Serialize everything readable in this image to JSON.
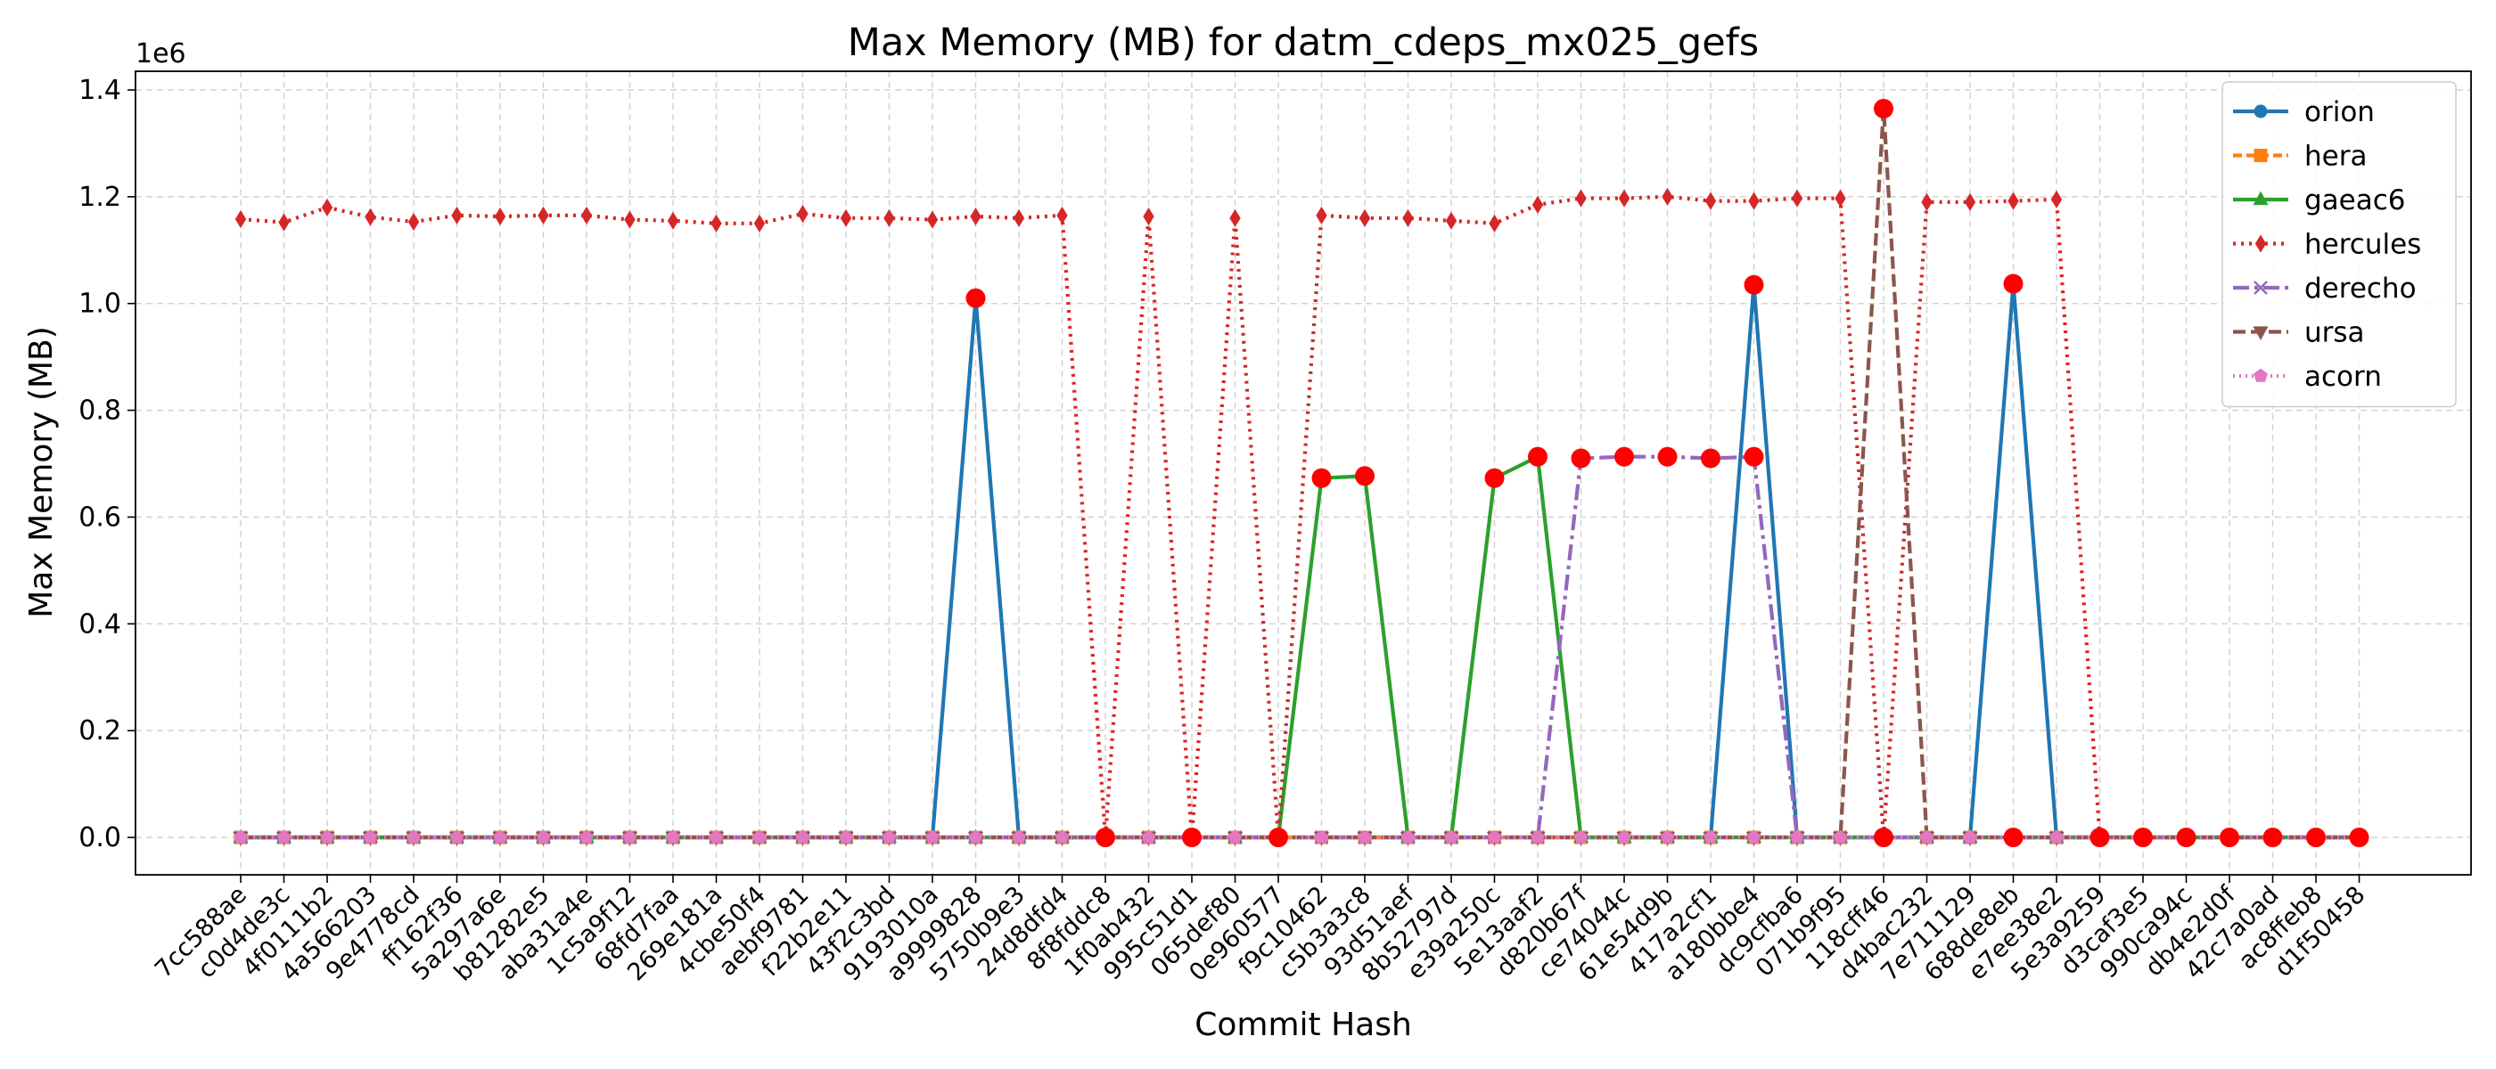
{
  "chart_data": {
    "type": "line",
    "title": "Max Memory (MB) for datm_cdeps_mx025_gefs",
    "xlabel": "Commit Hash",
    "ylabel": "Max Memory (MB)",
    "y_scale_label": "1e6",
    "y_multiplier": 1000000,
    "ylim": [
      -0.07,
      1.435
    ],
    "yticks": [
      0.0,
      0.2,
      0.4,
      0.6,
      0.8,
      1.0,
      1.2,
      1.4
    ],
    "ytick_labels": [
      "0.0",
      "0.2",
      "0.4",
      "0.6",
      "0.8",
      "1.0",
      "1.2",
      "1.4"
    ],
    "grid": true,
    "legend_position": "top-right",
    "categories": [
      "7cc588ae",
      "c0d4de3c",
      "4f0111b2",
      "4a566203",
      "9e4778cd",
      "ff162f36",
      "5a297a6e",
      "b81282e5",
      "aba31a4e",
      "1c5a9f12",
      "68fd7faa",
      "269e181a",
      "4cbe50f4",
      "aebf9781",
      "f22b2e11",
      "43f2c3bd",
      "9193010a",
      "a9999828",
      "5750b9e3",
      "24d8dfd4",
      "8f8fddc8",
      "1f0ab432",
      "995c51d1",
      "065def80",
      "0e960577",
      "f9c10462",
      "c5b3a3c8",
      "93d51aef",
      "8b52797d",
      "e39a250c",
      "5e13aaf2",
      "d820b67f",
      "ce74044c",
      "61e54d9b",
      "417a2cf1",
      "a180bbe4",
      "dc9cfba6",
      "071b9f95",
      "118cff46",
      "d4bac232",
      "7e711129",
      "688de8eb",
      "e7ee38e2",
      "5e3a9259",
      "d3caf3e5",
      "990ca94c",
      "db4e2d0f",
      "42c7a0ad",
      "ac8ffeb8",
      "d1f50458"
    ],
    "series": [
      {
        "name": "orion",
        "color": "#1f77b4",
        "dash": "",
        "marker": "circle",
        "values": [
          0,
          0,
          0,
          0,
          0,
          0,
          0,
          0,
          0,
          0,
          0,
          0,
          0,
          0,
          0,
          0,
          0,
          1.01,
          0,
          0,
          0,
          0,
          0,
          0,
          0,
          0,
          0,
          0,
          0,
          0,
          0,
          0,
          0,
          0,
          0,
          1.035,
          0,
          0,
          0,
          0,
          0,
          1.037,
          0,
          0,
          0,
          0,
          0,
          0,
          0,
          0
        ]
      },
      {
        "name": "hera",
        "color": "#ff7f0e",
        "dash": "10,5",
        "marker": "square",
        "values": [
          0,
          0,
          0,
          0,
          0,
          0,
          0,
          0,
          0,
          0,
          0,
          0,
          0,
          0,
          0,
          0,
          0,
          0,
          0,
          0,
          0,
          0,
          0,
          0,
          0,
          0,
          0,
          0,
          0,
          0,
          0,
          0,
          0,
          0,
          0,
          0,
          0,
          0,
          0,
          0,
          0,
          0,
          0,
          0,
          0,
          0,
          0,
          0,
          0,
          0
        ]
      },
      {
        "name": "gaeac6",
        "color": "#2ca02c",
        "dash": "",
        "marker": "triangle-up",
        "values": [
          0,
          0,
          0,
          0,
          0,
          0,
          0,
          0,
          0,
          0,
          0,
          0,
          0,
          0,
          0,
          0,
          0,
          0,
          0,
          0,
          0,
          0,
          0,
          0,
          0,
          0.673,
          0.677,
          0,
          0,
          0.673,
          0.713,
          0,
          0,
          0,
          0,
          0,
          0,
          0,
          0,
          0,
          0,
          0,
          0,
          0,
          0,
          0,
          0,
          0,
          0,
          0
        ]
      },
      {
        "name": "hercules",
        "color": "#d62728",
        "dash": "3,6",
        "marker": "diamond",
        "values": [
          1.158,
          1.152,
          1.18,
          1.162,
          1.153,
          1.165,
          1.163,
          1.165,
          1.165,
          1.157,
          1.155,
          1.15,
          1.15,
          1.168,
          1.16,
          1.16,
          1.157,
          1.163,
          1.16,
          1.165,
          0,
          1.163,
          0,
          1.16,
          0,
          1.165,
          1.16,
          1.16,
          1.155,
          1.15,
          1.185,
          1.197,
          1.197,
          1.2,
          1.192,
          1.192,
          1.197,
          1.197,
          0,
          1.19,
          1.19,
          1.192,
          1.195,
          0,
          0,
          0,
          0,
          0,
          0,
          0
        ]
      },
      {
        "name": "derecho",
        "color": "#9467bd",
        "dash": "18,6,4,6",
        "marker": "x",
        "values": [
          0,
          0,
          0,
          0,
          0,
          0,
          0,
          0,
          0,
          0,
          0,
          0,
          0,
          0,
          0,
          0,
          0,
          0,
          0,
          0,
          0,
          0,
          0,
          0,
          0,
          0,
          0,
          0,
          0,
          0,
          0,
          0.71,
          0.713,
          0.713,
          0.71,
          0.713,
          0,
          0,
          0,
          0,
          0,
          0,
          0,
          0,
          0,
          0,
          0,
          0,
          0,
          0
        ]
      },
      {
        "name": "ursa",
        "color": "#8c564b",
        "dash": "14,6",
        "marker": "triangle-down",
        "values": [
          0,
          0,
          0,
          0,
          0,
          0,
          0,
          0,
          0,
          0,
          0,
          0,
          0,
          0,
          0,
          0,
          0,
          0,
          0,
          0,
          0,
          0,
          0,
          0,
          0,
          0,
          0,
          0,
          0,
          0,
          0,
          0,
          0,
          0,
          0,
          0,
          0,
          0,
          1.365,
          0,
          0,
          0,
          0,
          0,
          0,
          0,
          0,
          0,
          0,
          0
        ]
      },
      {
        "name": "acorn",
        "color": "#e377c2",
        "dash": "2,5",
        "marker": "pentagon",
        "values": [
          0,
          0,
          0,
          0,
          0,
          0,
          0,
          0,
          0,
          0,
          0,
          0,
          0,
          0,
          0,
          0,
          0,
          0,
          0,
          0,
          0,
          0,
          0,
          0,
          0,
          0,
          0,
          0,
          0,
          0,
          0,
          0,
          0,
          0,
          0,
          0,
          0,
          0,
          0,
          0,
          0,
          0,
          0,
          0,
          0,
          0,
          0,
          0,
          0,
          0
        ]
      }
    ],
    "highlights": {
      "color": "#ff0000",
      "points": [
        [
          17,
          1.01
        ],
        [
          20,
          0
        ],
        [
          22,
          0
        ],
        [
          24,
          0
        ],
        [
          25,
          0.673
        ],
        [
          26,
          0.677
        ],
        [
          29,
          0.673
        ],
        [
          30,
          0.713
        ],
        [
          31,
          0.71
        ],
        [
          32,
          0.713
        ],
        [
          33,
          0.713
        ],
        [
          34,
          0.71
        ],
        [
          35,
          0.713
        ],
        [
          35,
          1.035
        ],
        [
          38,
          1.365
        ],
        [
          38,
          0
        ],
        [
          41,
          1.037
        ],
        [
          41,
          0
        ],
        [
          43,
          0
        ],
        [
          44,
          0
        ],
        [
          45,
          0
        ],
        [
          46,
          0
        ],
        [
          47,
          0
        ],
        [
          48,
          0
        ],
        [
          49,
          0
        ]
      ]
    }
  }
}
